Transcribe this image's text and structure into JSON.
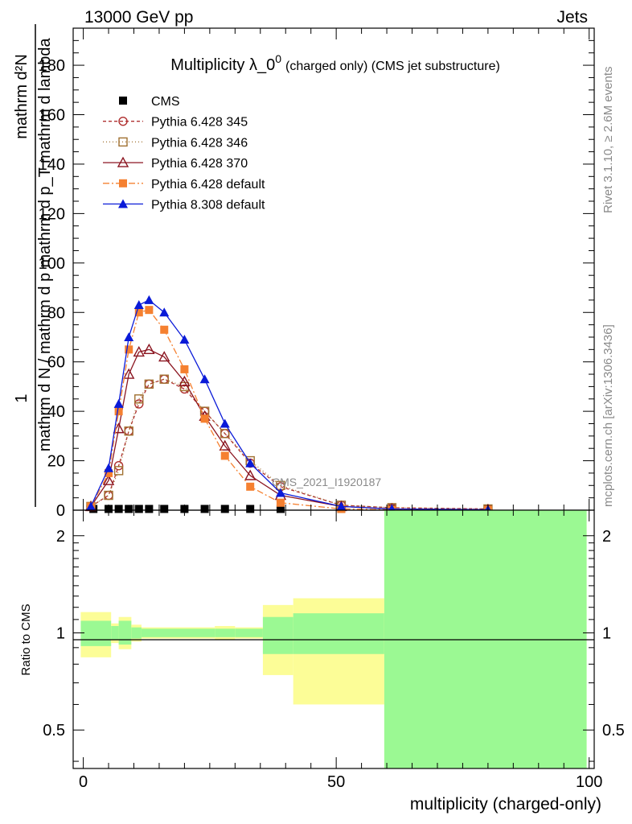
{
  "header": {
    "left": "13000 GeV pp",
    "right": "Jets"
  },
  "side_labels": {
    "rivet": "Rivet 3.1.10, ≥ 2.6M events",
    "mcplots": "mcplots.cern.ch [arXiv:1306.3436]"
  },
  "chart_data": {
    "type": "line",
    "title_main": "Multiplicity λ_0",
    "title_sup": "0",
    "title_rest": "(charged only) (CMS jet substructure)",
    "watermark": "CMS_2021_I1920187",
    "xlabel": "multiplicity (charged-only)",
    "ylabel": "1 / (mathrm d N / mathrm d p_T mathrm d p_T mathrm d lambda) · mathrm d²N / mathrm d p_T mathrm d lambda",
    "ylabel_parts": {
      "numerator": "mathrm d²N",
      "denominator_top": "mathrm d N / mathrm d p",
      "one": "1",
      "right_part": "mathrm d p_T mathrm d lambda"
    },
    "xlim": [
      -2,
      101
    ],
    "ylim": [
      0,
      195
    ],
    "x_ticks": [
      0,
      50,
      100
    ],
    "y_ticks": [
      0,
      20,
      40,
      60,
      80,
      100,
      120,
      140,
      160,
      180
    ],
    "legend": [
      {
        "name": "CMS",
        "color": "#000000",
        "marker": "square-filled",
        "dash": "none"
      },
      {
        "name": "Pythia 6.428 345",
        "color": "#b03030",
        "marker": "circle-open",
        "dash": "4,3"
      },
      {
        "name": "Pythia 6.428 346",
        "color": "#a07030",
        "marker": "square-open",
        "dash": "1,3"
      },
      {
        "name": "Pythia 6.428 370",
        "color": "#8b1520",
        "marker": "triangle-open",
        "dash": "none"
      },
      {
        "name": "Pythia 6.428 default",
        "color": "#f58030",
        "marker": "square-filled",
        "dash": "8,3,2,3"
      },
      {
        "name": "Pythia 8.308 default",
        "color": "#0a1ad8",
        "marker": "triangle-filled",
        "dash": "none"
      }
    ],
    "series": [
      {
        "name": "CMS",
        "x": [
          2,
          5,
          7,
          9,
          11,
          13,
          16,
          20,
          24,
          28,
          33,
          39,
          51,
          61,
          80
        ],
        "y": [
          0.5,
          0.5,
          0.5,
          0.5,
          0.5,
          0.5,
          0.5,
          0.5,
          0.5,
          0.5,
          0.5,
          0.5,
          0.5,
          0.5,
          0.5
        ]
      },
      {
        "name": "Pythia 6.428 345",
        "x": [
          1.5,
          5,
          7,
          9,
          11,
          13,
          16,
          20,
          24,
          28,
          33,
          39,
          51,
          61,
          80
        ],
        "y": [
          1.5,
          6,
          18,
          32,
          43,
          51,
          53,
          49,
          40,
          31,
          19,
          9.5,
          2,
          1,
          0.5
        ]
      },
      {
        "name": "Pythia 6.428 346",
        "x": [
          1.5,
          5,
          7,
          9,
          11,
          13,
          16,
          20,
          24,
          28,
          33,
          39,
          51,
          61,
          80
        ],
        "y": [
          1.5,
          6,
          16,
          32,
          45,
          51,
          53,
          50,
          40,
          31,
          20,
          10,
          2,
          1,
          0.5
        ]
      },
      {
        "name": "Pythia 6.428 370",
        "x": [
          1.5,
          5,
          7,
          9,
          11,
          13,
          16,
          20,
          24,
          28,
          33,
          39,
          51,
          61,
          80
        ],
        "y": [
          1.5,
          12,
          33,
          55,
          64,
          65,
          62,
          52,
          38,
          26,
          14,
          6,
          1.5,
          0.5,
          0.2
        ]
      },
      {
        "name": "Pythia 6.428 default",
        "x": [
          1.5,
          5,
          7,
          9,
          11,
          13,
          16,
          20,
          24,
          28,
          33,
          39,
          51,
          61,
          80
        ],
        "y": [
          1.5,
          15,
          40,
          65,
          80,
          81,
          73,
          57,
          37,
          22,
          9.5,
          3,
          0.5,
          0.2,
          0.1
        ]
      },
      {
        "name": "Pythia 8.308 default",
        "x": [
          1.5,
          5,
          7,
          9,
          11,
          13,
          16,
          20,
          24,
          28,
          33,
          39,
          51,
          61,
          80
        ],
        "y": [
          1.5,
          17,
          43,
          70,
          83,
          85,
          80,
          69,
          53,
          35,
          19,
          7,
          1.5,
          0.5,
          0.2
        ]
      }
    ],
    "ratio": {
      "ylabel": "Ratio to CMS",
      "ylim": [
        0.38,
        2.4
      ],
      "y_ticks": [
        0.5,
        1,
        2
      ],
      "y_tick_labels": [
        "0.5",
        "1",
        "2"
      ],
      "reference": 1,
      "green_band_color": "#9bf993",
      "yellow_band_color": "#fcfd97",
      "bands": [
        {
          "x0": -0.5,
          "x1": 5.5,
          "g_lo": 0.91,
          "g_hi": 1.09,
          "y_lo": 0.84,
          "y_hi": 1.16
        },
        {
          "x0": 5.5,
          "x1": 7,
          "g_lo": 0.95,
          "g_hi": 1.05,
          "y_lo": 0.93,
          "y_hi": 1.07
        },
        {
          "x0": 7,
          "x1": 9.5,
          "g_lo": 0.92,
          "g_hi": 1.09,
          "y_lo": 0.89,
          "y_hi": 1.12
        },
        {
          "x0": 9.5,
          "x1": 11.5,
          "g_lo": 0.96,
          "g_hi": 1.04,
          "y_lo": 0.94,
          "y_hi": 1.06
        },
        {
          "x0": 11.5,
          "x1": 26,
          "g_lo": 0.97,
          "g_hi": 1.03,
          "y_lo": 0.96,
          "y_hi": 1.04
        },
        {
          "x0": 26,
          "x1": 30,
          "g_lo": 0.97,
          "g_hi": 1.03,
          "y_lo": 0.95,
          "y_hi": 1.05
        },
        {
          "x0": 30,
          "x1": 35.5,
          "g_lo": 0.97,
          "g_hi": 1.03,
          "y_lo": 0.96,
          "y_hi": 1.04
        },
        {
          "x0": 35.5,
          "x1": 41.5,
          "g_lo": 0.86,
          "g_hi": 1.12,
          "y_lo": 0.74,
          "y_hi": 1.22
        },
        {
          "x0": 41.5,
          "x1": 59.5,
          "g_lo": 0.86,
          "g_hi": 1.15,
          "y_lo": 0.6,
          "y_hi": 1.28
        },
        {
          "x0": 59.5,
          "x1": 99.5,
          "g_lo": 0.38,
          "g_hi": 2.4,
          "y_lo": 0.38,
          "y_hi": 2.4
        }
      ]
    }
  }
}
